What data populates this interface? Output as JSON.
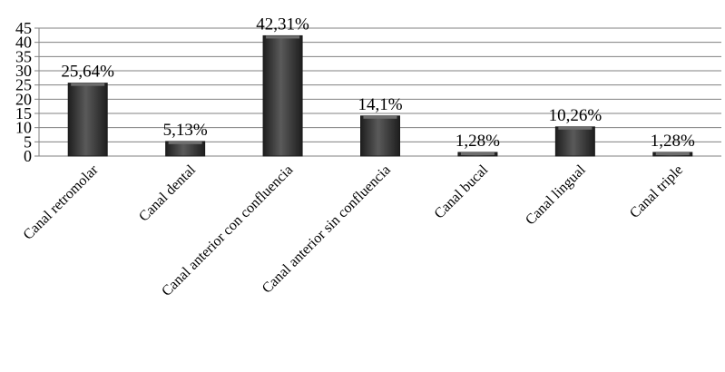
{
  "chart_data": {
    "type": "bar",
    "title": "",
    "xlabel": "",
    "ylabel": "",
    "categories": [
      "Canal retromolar",
      "Canal dental",
      "Canal anterior con confluencia",
      "Canal anterior sin confluencia",
      "Canal bucal",
      "Canal lingual",
      "Canal triple"
    ],
    "values": [
      25.64,
      5.13,
      42.31,
      14.1,
      1.28,
      10.26,
      1.28
    ],
    "data_labels": [
      "25,64%",
      "5,13%",
      "42,31%",
      "14,1%",
      "1,28%",
      "10,26%",
      "1,28%"
    ],
    "ylim": [
      0,
      45
    ],
    "yticks": [
      0,
      5,
      10,
      15,
      20,
      25,
      30,
      35,
      40,
      45
    ],
    "ytick_labels": [
      "0",
      "5",
      "10",
      "15",
      "20",
      "25",
      "30",
      "35",
      "40",
      "45"
    ],
    "grid": true,
    "legend": "none",
    "colors": {
      "bar": "#3a3a3a",
      "bar_highlight": "#6e6e6e",
      "grid": "#808080",
      "axis": "#808080"
    }
  }
}
